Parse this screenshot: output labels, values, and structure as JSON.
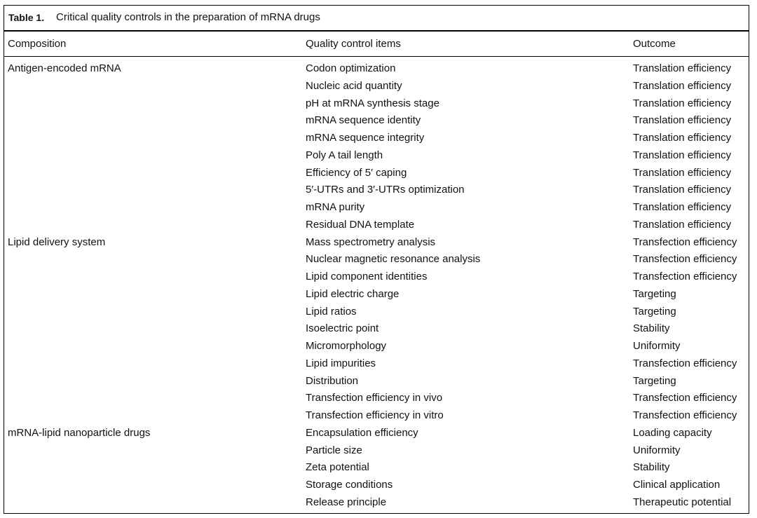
{
  "header": {
    "label": "Table 1.",
    "caption": "Critical quality controls in the preparation of mRNA drugs"
  },
  "table": {
    "columns": [
      "Composition",
      "Quality control items",
      "Outcome"
    ],
    "groups": [
      {
        "composition": "Antigen-encoded mRNA",
        "items": [
          {
            "item": "Codon optimization",
            "outcome": "Translation efficiency"
          },
          {
            "item": "Nucleic acid quantity",
            "outcome": "Translation efficiency"
          },
          {
            "item": "pH at mRNA synthesis stage",
            "outcome": "Translation efficiency"
          },
          {
            "item": "mRNA sequence identity",
            "outcome": "Translation efficiency"
          },
          {
            "item": "mRNA sequence integrity",
            "outcome": "Translation efficiency"
          },
          {
            "item": "Poly A tail length",
            "outcome": "Translation efficiency"
          },
          {
            "item": "Efficiency of 5′ caping",
            "outcome": "Translation efficiency"
          },
          {
            "item": "5′-UTRs and 3′-UTRs optimization",
            "outcome": "Translation efficiency"
          },
          {
            "item": "mRNA purity",
            "outcome": "Translation efficiency"
          },
          {
            "item": "Residual DNA template",
            "outcome": "Translation efficiency"
          }
        ]
      },
      {
        "composition": "Lipid delivery system",
        "items": [
          {
            "item": "Mass spectrometry analysis",
            "outcome": "Transfection efficiency"
          },
          {
            "item": "Nuclear magnetic resonance analysis",
            "outcome": "Transfection efficiency"
          },
          {
            "item": "Lipid component identities",
            "outcome": "Transfection efficiency"
          },
          {
            "item": "Lipid electric charge",
            "outcome": "Targeting"
          },
          {
            "item": "Lipid ratios",
            "outcome": "Targeting"
          },
          {
            "item": "Isoelectric point",
            "outcome": "Stability"
          },
          {
            "item": "Micromorphology",
            "outcome": "Uniformity"
          },
          {
            "item": "Lipid impurities",
            "outcome": "Transfection efficiency"
          },
          {
            "item": "Distribution",
            "outcome": "Targeting"
          },
          {
            "item": "Transfection efficiency in vivo",
            "outcome": "Transfection efficiency"
          },
          {
            "item": "Transfection efficiency in vitro",
            "outcome": "Transfection efficiency"
          }
        ]
      },
      {
        "composition": "mRNA-lipid nanoparticle drugs",
        "items": [
          {
            "item": "Encapsulation efficiency",
            "outcome": "Loading capacity"
          },
          {
            "item": "Particle size",
            "outcome": "Uniformity"
          },
          {
            "item": "Zeta potential",
            "outcome": "Stability"
          },
          {
            "item": "Storage conditions",
            "outcome": "Clinical application"
          },
          {
            "item": "Release principle",
            "outcome": "Therapeutic potential"
          }
        ]
      }
    ]
  }
}
